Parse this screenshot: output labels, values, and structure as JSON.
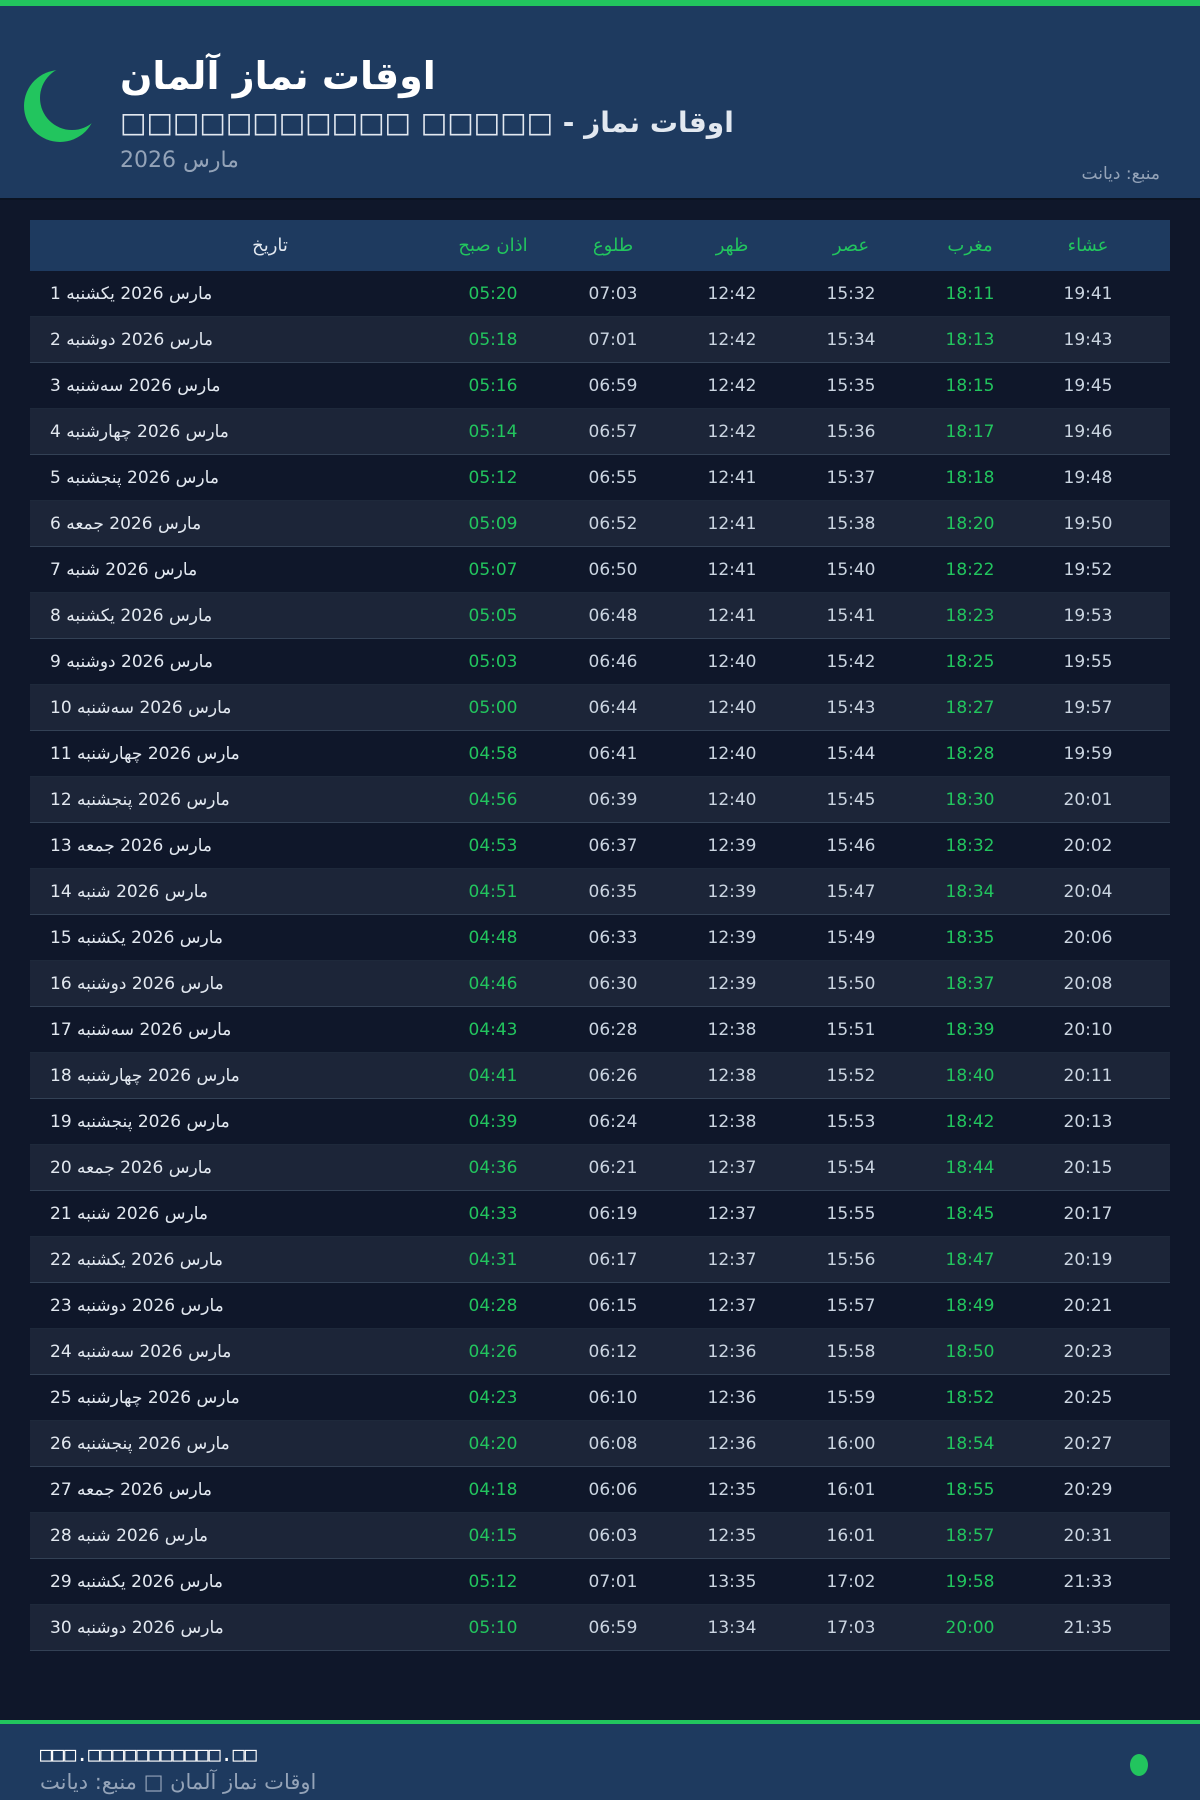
{
  "header": {
    "title": "اوقات نماز آلمان",
    "subtitle": "□□□□□□□□□□□ □□□□□ - اوقات نماز",
    "month": "مارس 2026",
    "source": "منبع: دیانت"
  },
  "colors": {
    "accent": "#22c55e",
    "header_bg": "#1e3a5f",
    "page_bg": "#0f172a"
  },
  "table": {
    "columns": [
      "تاریخ",
      "اذان صبح",
      "طلوع",
      "ظهر",
      "عصر",
      "مغرب",
      "عشاء"
    ],
    "rows": [
      [
        "1 مارس 2026 یکشنبه",
        "05:20",
        "07:03",
        "12:42",
        "15:32",
        "18:11",
        "19:41"
      ],
      [
        "2 مارس 2026 دوشنبه",
        "05:18",
        "07:01",
        "12:42",
        "15:34",
        "18:13",
        "19:43"
      ],
      [
        "3 مارس 2026 سه‌شنبه",
        "05:16",
        "06:59",
        "12:42",
        "15:35",
        "18:15",
        "19:45"
      ],
      [
        "4 مارس 2026 چهارشنبه",
        "05:14",
        "06:57",
        "12:42",
        "15:36",
        "18:17",
        "19:46"
      ],
      [
        "5 مارس 2026 پنجشنبه",
        "05:12",
        "06:55",
        "12:41",
        "15:37",
        "18:18",
        "19:48"
      ],
      [
        "6 مارس 2026 جمعه",
        "05:09",
        "06:52",
        "12:41",
        "15:38",
        "18:20",
        "19:50"
      ],
      [
        "7 مارس 2026 شنبه",
        "05:07",
        "06:50",
        "12:41",
        "15:40",
        "18:22",
        "19:52"
      ],
      [
        "8 مارس 2026 یکشنبه",
        "05:05",
        "06:48",
        "12:41",
        "15:41",
        "18:23",
        "19:53"
      ],
      [
        "9 مارس 2026 دوشنبه",
        "05:03",
        "06:46",
        "12:40",
        "15:42",
        "18:25",
        "19:55"
      ],
      [
        "10 مارس 2026 سه‌شنبه",
        "05:00",
        "06:44",
        "12:40",
        "15:43",
        "18:27",
        "19:57"
      ],
      [
        "11 مارس 2026 چهارشنبه",
        "04:58",
        "06:41",
        "12:40",
        "15:44",
        "18:28",
        "19:59"
      ],
      [
        "12 مارس 2026 پنجشنبه",
        "04:56",
        "06:39",
        "12:40",
        "15:45",
        "18:30",
        "20:01"
      ],
      [
        "13 مارس 2026 جمعه",
        "04:53",
        "06:37",
        "12:39",
        "15:46",
        "18:32",
        "20:02"
      ],
      [
        "14 مارس 2026 شنبه",
        "04:51",
        "06:35",
        "12:39",
        "15:47",
        "18:34",
        "20:04"
      ],
      [
        "15 مارس 2026 یکشنبه",
        "04:48",
        "06:33",
        "12:39",
        "15:49",
        "18:35",
        "20:06"
      ],
      [
        "16 مارس 2026 دوشنبه",
        "04:46",
        "06:30",
        "12:39",
        "15:50",
        "18:37",
        "20:08"
      ],
      [
        "17 مارس 2026 سه‌شنبه",
        "04:43",
        "06:28",
        "12:38",
        "15:51",
        "18:39",
        "20:10"
      ],
      [
        "18 مارس 2026 چهارشنبه",
        "04:41",
        "06:26",
        "12:38",
        "15:52",
        "18:40",
        "20:11"
      ],
      [
        "19 مارس 2026 پنجشنبه",
        "04:39",
        "06:24",
        "12:38",
        "15:53",
        "18:42",
        "20:13"
      ],
      [
        "20 مارس 2026 جمعه",
        "04:36",
        "06:21",
        "12:37",
        "15:54",
        "18:44",
        "20:15"
      ],
      [
        "21 مارس 2026 شنبه",
        "04:33",
        "06:19",
        "12:37",
        "15:55",
        "18:45",
        "20:17"
      ],
      [
        "22 مارس 2026 یکشنبه",
        "04:31",
        "06:17",
        "12:37",
        "15:56",
        "18:47",
        "20:19"
      ],
      [
        "23 مارس 2026 دوشنبه",
        "04:28",
        "06:15",
        "12:37",
        "15:57",
        "18:49",
        "20:21"
      ],
      [
        "24 مارس 2026 سه‌شنبه",
        "04:26",
        "06:12",
        "12:36",
        "15:58",
        "18:50",
        "20:23"
      ],
      [
        "25 مارس 2026 چهارشنبه",
        "04:23",
        "06:10",
        "12:36",
        "15:59",
        "18:52",
        "20:25"
      ],
      [
        "26 مارس 2026 پنجشنبه",
        "04:20",
        "06:08",
        "12:36",
        "16:00",
        "18:54",
        "20:27"
      ],
      [
        "27 مارس 2026 جمعه",
        "04:18",
        "06:06",
        "12:35",
        "16:01",
        "18:55",
        "20:29"
      ],
      [
        "28 مارس 2026 شنبه",
        "04:15",
        "06:03",
        "12:35",
        "16:01",
        "18:57",
        "20:31"
      ],
      [
        "29 مارس 2026 یکشنبه",
        "05:12",
        "07:01",
        "13:35",
        "17:02",
        "19:58",
        "21:33"
      ],
      [
        "30 مارس 2026 دوشنبه",
        "05:10",
        "06:59",
        "13:34",
        "17:03",
        "20:00",
        "21:35"
      ]
    ]
  },
  "footer": {
    "url": "□□□.□□□□□□□□□□□.□□",
    "text": "اوقات نماز آلمان □ منبع: دیانت"
  }
}
